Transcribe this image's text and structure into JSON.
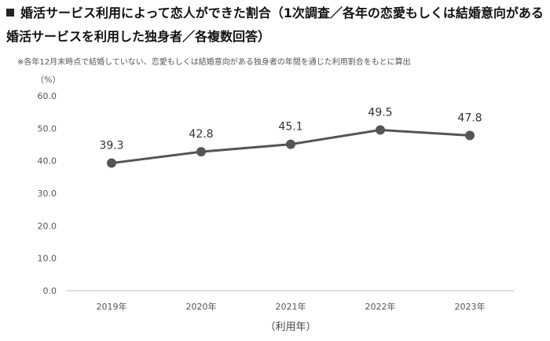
{
  "chart_data": {
    "type": "line",
    "title": "婚活サービス利用によって恋人ができた割合（1次調査／各年の恋愛もしくは結婚意向がある婚活サービスを利用した独身者／各複数回答）",
    "subtitle": "※各年12月末時点で結婚していない、恋愛もしくは結婚意向がある独身者の年間を通じた利用割合をもとに算出",
    "ylabel": "（%）",
    "xlabel": "（利用年）",
    "categories": [
      "2019年",
      "2020年",
      "2021年",
      "2022年",
      "2023年"
    ],
    "values": [
      39.3,
      42.8,
      45.1,
      49.5,
      47.8
    ],
    "data_labels": [
      "39.3",
      "42.8",
      "45.1",
      "49.5",
      "47.8"
    ],
    "ylim": [
      0,
      60
    ],
    "yticks": [
      "0.0",
      "10.0",
      "20.0",
      "30.0",
      "40.0",
      "50.0",
      "60.0"
    ],
    "grid": false,
    "colors": {
      "line": "#555555",
      "marker": "#555555"
    }
  }
}
